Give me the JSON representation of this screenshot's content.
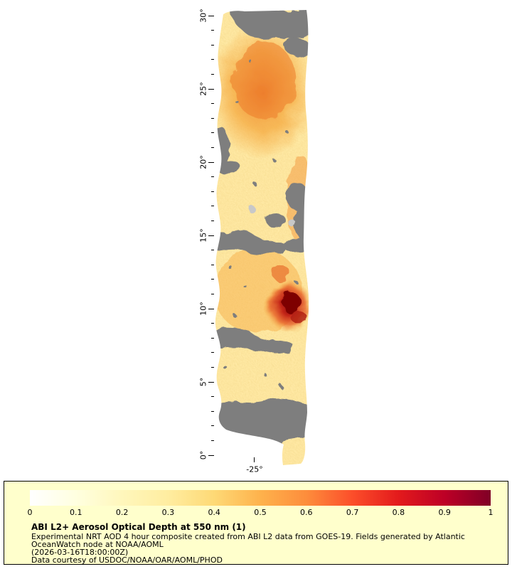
{
  "map": {
    "y_axis": {
      "labels": [
        "30°",
        "25°",
        "20°",
        "15°",
        "10°",
        "5°",
        "0°"
      ]
    },
    "x_axis": {
      "label": "-25°"
    }
  },
  "legend": {
    "ticks": [
      "0",
      "0.1",
      "0.2",
      "0.3",
      "0.4",
      "0.5",
      "0.6",
      "0.7",
      "0.8",
      "0.9",
      "1"
    ],
    "title": "ABI L2+ Aerosol Optical Depth at 550 nm (1)",
    "lines": [
      "Experimental NRT AOD 4 hour composite created from ABI L2 data from GOES-19. Fields generated by Atlantic",
      "OceanWatch node at NOAA/AOML",
      "(2026-03-16T18:00:00Z)",
      "Data courtesy of USDOC/NOAA/OAR/AOML/PHOD"
    ],
    "colorbar_range": {
      "min": 0,
      "max": 1
    },
    "colormap": [
      "#ffffff",
      "#ffffe0",
      "#fff7bc",
      "#ffeda0",
      "#fed976",
      "#feb24c",
      "#fd8d3c",
      "#fc4e2a",
      "#e31a1c",
      "#bd0026",
      "#800026"
    ]
  },
  "colors": {
    "nodata": "#7E7E7E",
    "nodata_light": "#C8C8C8",
    "base": "#FFE9A4",
    "orange": "#F5A93F",
    "high_orange": "#ED7C2A",
    "red": "#C21E14",
    "darkred": "#7E0000",
    "legend_bg": "#FFFFCC",
    "axis": "#000000"
  }
}
